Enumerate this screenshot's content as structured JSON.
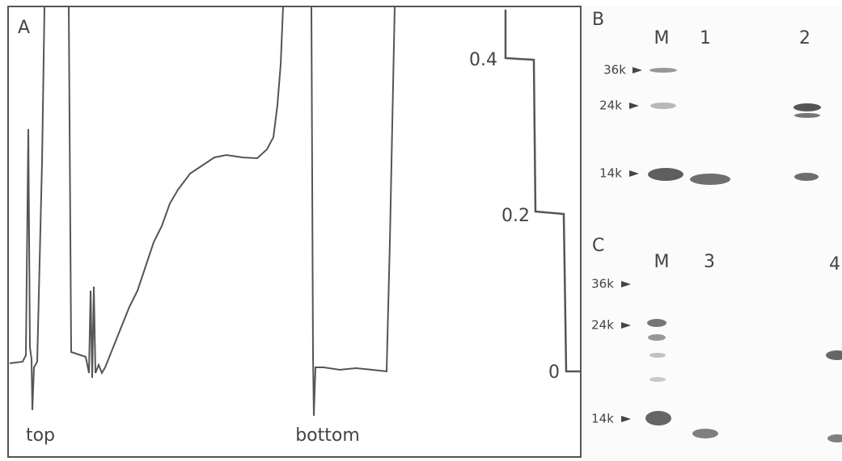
{
  "panel_a": {
    "label": "A",
    "start_label": "top",
    "end_label": "bottom",
    "scale": [
      "0.4",
      "0.2",
      "0"
    ]
  },
  "panel_b": {
    "label": "B",
    "lanes": [
      "M",
      "1",
      "2"
    ],
    "markers": [
      "36k",
      "24k",
      "14k"
    ]
  },
  "panel_c": {
    "label": "C",
    "lanes": [
      "M",
      "3",
      "4"
    ],
    "markers": [
      "36k",
      "24k",
      "14k"
    ]
  }
}
